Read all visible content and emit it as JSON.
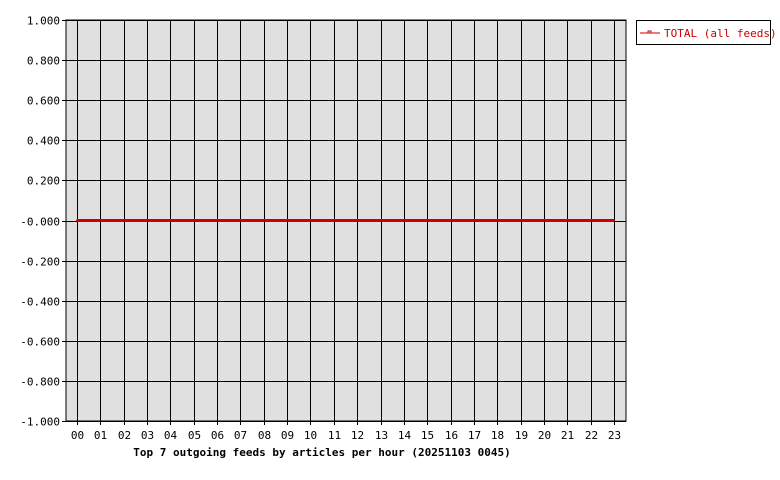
{
  "chart_data": {
    "type": "line",
    "title": "Top 7 outgoing feeds by articles per hour (20251103 0045)",
    "xlabel": "",
    "ylabel": "",
    "categories": [
      "00",
      "01",
      "02",
      "03",
      "04",
      "05",
      "06",
      "07",
      "08",
      "09",
      "10",
      "11",
      "12",
      "13",
      "14",
      "15",
      "16",
      "17",
      "18",
      "19",
      "20",
      "21",
      "22",
      "23"
    ],
    "y_ticks": [
      "1.000",
      "0.800",
      "0.600",
      "0.400",
      "0.200",
      "-0.000",
      "-0.200",
      "-0.400",
      "-0.600",
      "-0.800",
      "-1.000"
    ],
    "ylim": [
      -1,
      1
    ],
    "grid": true,
    "legend_position": "top-right",
    "series": [
      {
        "name": "TOTAL (all feeds)",
        "color": "#cc0000",
        "values": [
          0,
          0,
          0,
          0,
          0,
          0,
          0,
          0,
          0,
          0,
          0,
          0,
          0,
          0,
          0,
          0,
          0,
          0,
          0,
          0,
          0,
          0,
          0,
          0
        ]
      }
    ],
    "plot_background": "#e0e0e0"
  }
}
